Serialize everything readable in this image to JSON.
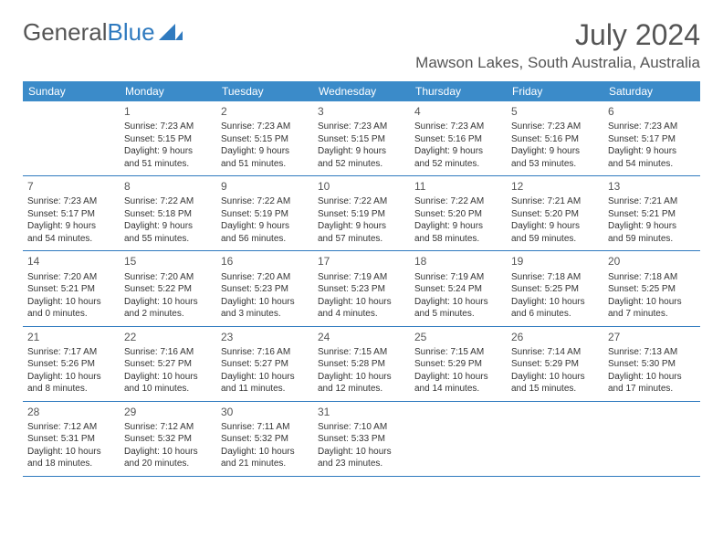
{
  "logo": {
    "text1": "General",
    "text2": "Blue"
  },
  "title": "July 2024",
  "location": "Mawson Lakes, South Australia, Australia",
  "colors": {
    "header_bg": "#3b8bc9",
    "header_text": "#ffffff",
    "border": "#2f7abf",
    "text": "#333333",
    "title_text": "#555555"
  },
  "day_names": [
    "Sunday",
    "Monday",
    "Tuesday",
    "Wednesday",
    "Thursday",
    "Friday",
    "Saturday"
  ],
  "weeks": [
    [
      {
        "day": "",
        "sunrise": "",
        "sunset": "",
        "dl1": "",
        "dl2": ""
      },
      {
        "day": "1",
        "sunrise": "Sunrise: 7:23 AM",
        "sunset": "Sunset: 5:15 PM",
        "dl1": "Daylight: 9 hours",
        "dl2": "and 51 minutes."
      },
      {
        "day": "2",
        "sunrise": "Sunrise: 7:23 AM",
        "sunset": "Sunset: 5:15 PM",
        "dl1": "Daylight: 9 hours",
        "dl2": "and 51 minutes."
      },
      {
        "day": "3",
        "sunrise": "Sunrise: 7:23 AM",
        "sunset": "Sunset: 5:15 PM",
        "dl1": "Daylight: 9 hours",
        "dl2": "and 52 minutes."
      },
      {
        "day": "4",
        "sunrise": "Sunrise: 7:23 AM",
        "sunset": "Sunset: 5:16 PM",
        "dl1": "Daylight: 9 hours",
        "dl2": "and 52 minutes."
      },
      {
        "day": "5",
        "sunrise": "Sunrise: 7:23 AM",
        "sunset": "Sunset: 5:16 PM",
        "dl1": "Daylight: 9 hours",
        "dl2": "and 53 minutes."
      },
      {
        "day": "6",
        "sunrise": "Sunrise: 7:23 AM",
        "sunset": "Sunset: 5:17 PM",
        "dl1": "Daylight: 9 hours",
        "dl2": "and 54 minutes."
      }
    ],
    [
      {
        "day": "7",
        "sunrise": "Sunrise: 7:23 AM",
        "sunset": "Sunset: 5:17 PM",
        "dl1": "Daylight: 9 hours",
        "dl2": "and 54 minutes."
      },
      {
        "day": "8",
        "sunrise": "Sunrise: 7:22 AM",
        "sunset": "Sunset: 5:18 PM",
        "dl1": "Daylight: 9 hours",
        "dl2": "and 55 minutes."
      },
      {
        "day": "9",
        "sunrise": "Sunrise: 7:22 AM",
        "sunset": "Sunset: 5:19 PM",
        "dl1": "Daylight: 9 hours",
        "dl2": "and 56 minutes."
      },
      {
        "day": "10",
        "sunrise": "Sunrise: 7:22 AM",
        "sunset": "Sunset: 5:19 PM",
        "dl1": "Daylight: 9 hours",
        "dl2": "and 57 minutes."
      },
      {
        "day": "11",
        "sunrise": "Sunrise: 7:22 AM",
        "sunset": "Sunset: 5:20 PM",
        "dl1": "Daylight: 9 hours",
        "dl2": "and 58 minutes."
      },
      {
        "day": "12",
        "sunrise": "Sunrise: 7:21 AM",
        "sunset": "Sunset: 5:20 PM",
        "dl1": "Daylight: 9 hours",
        "dl2": "and 59 minutes."
      },
      {
        "day": "13",
        "sunrise": "Sunrise: 7:21 AM",
        "sunset": "Sunset: 5:21 PM",
        "dl1": "Daylight: 9 hours",
        "dl2": "and 59 minutes."
      }
    ],
    [
      {
        "day": "14",
        "sunrise": "Sunrise: 7:20 AM",
        "sunset": "Sunset: 5:21 PM",
        "dl1": "Daylight: 10 hours",
        "dl2": "and 0 minutes."
      },
      {
        "day": "15",
        "sunrise": "Sunrise: 7:20 AM",
        "sunset": "Sunset: 5:22 PM",
        "dl1": "Daylight: 10 hours",
        "dl2": "and 2 minutes."
      },
      {
        "day": "16",
        "sunrise": "Sunrise: 7:20 AM",
        "sunset": "Sunset: 5:23 PM",
        "dl1": "Daylight: 10 hours",
        "dl2": "and 3 minutes."
      },
      {
        "day": "17",
        "sunrise": "Sunrise: 7:19 AM",
        "sunset": "Sunset: 5:23 PM",
        "dl1": "Daylight: 10 hours",
        "dl2": "and 4 minutes."
      },
      {
        "day": "18",
        "sunrise": "Sunrise: 7:19 AM",
        "sunset": "Sunset: 5:24 PM",
        "dl1": "Daylight: 10 hours",
        "dl2": "and 5 minutes."
      },
      {
        "day": "19",
        "sunrise": "Sunrise: 7:18 AM",
        "sunset": "Sunset: 5:25 PM",
        "dl1": "Daylight: 10 hours",
        "dl2": "and 6 minutes."
      },
      {
        "day": "20",
        "sunrise": "Sunrise: 7:18 AM",
        "sunset": "Sunset: 5:25 PM",
        "dl1": "Daylight: 10 hours",
        "dl2": "and 7 minutes."
      }
    ],
    [
      {
        "day": "21",
        "sunrise": "Sunrise: 7:17 AM",
        "sunset": "Sunset: 5:26 PM",
        "dl1": "Daylight: 10 hours",
        "dl2": "and 8 minutes."
      },
      {
        "day": "22",
        "sunrise": "Sunrise: 7:16 AM",
        "sunset": "Sunset: 5:27 PM",
        "dl1": "Daylight: 10 hours",
        "dl2": "and 10 minutes."
      },
      {
        "day": "23",
        "sunrise": "Sunrise: 7:16 AM",
        "sunset": "Sunset: 5:27 PM",
        "dl1": "Daylight: 10 hours",
        "dl2": "and 11 minutes."
      },
      {
        "day": "24",
        "sunrise": "Sunrise: 7:15 AM",
        "sunset": "Sunset: 5:28 PM",
        "dl1": "Daylight: 10 hours",
        "dl2": "and 12 minutes."
      },
      {
        "day": "25",
        "sunrise": "Sunrise: 7:15 AM",
        "sunset": "Sunset: 5:29 PM",
        "dl1": "Daylight: 10 hours",
        "dl2": "and 14 minutes."
      },
      {
        "day": "26",
        "sunrise": "Sunrise: 7:14 AM",
        "sunset": "Sunset: 5:29 PM",
        "dl1": "Daylight: 10 hours",
        "dl2": "and 15 minutes."
      },
      {
        "day": "27",
        "sunrise": "Sunrise: 7:13 AM",
        "sunset": "Sunset: 5:30 PM",
        "dl1": "Daylight: 10 hours",
        "dl2": "and 17 minutes."
      }
    ],
    [
      {
        "day": "28",
        "sunrise": "Sunrise: 7:12 AM",
        "sunset": "Sunset: 5:31 PM",
        "dl1": "Daylight: 10 hours",
        "dl2": "and 18 minutes."
      },
      {
        "day": "29",
        "sunrise": "Sunrise: 7:12 AM",
        "sunset": "Sunset: 5:32 PM",
        "dl1": "Daylight: 10 hours",
        "dl2": "and 20 minutes."
      },
      {
        "day": "30",
        "sunrise": "Sunrise: 7:11 AM",
        "sunset": "Sunset: 5:32 PM",
        "dl1": "Daylight: 10 hours",
        "dl2": "and 21 minutes."
      },
      {
        "day": "31",
        "sunrise": "Sunrise: 7:10 AM",
        "sunset": "Sunset: 5:33 PM",
        "dl1": "Daylight: 10 hours",
        "dl2": "and 23 minutes."
      },
      {
        "day": "",
        "sunrise": "",
        "sunset": "",
        "dl1": "",
        "dl2": ""
      },
      {
        "day": "",
        "sunrise": "",
        "sunset": "",
        "dl1": "",
        "dl2": ""
      },
      {
        "day": "",
        "sunrise": "",
        "sunset": "",
        "dl1": "",
        "dl2": ""
      }
    ]
  ]
}
